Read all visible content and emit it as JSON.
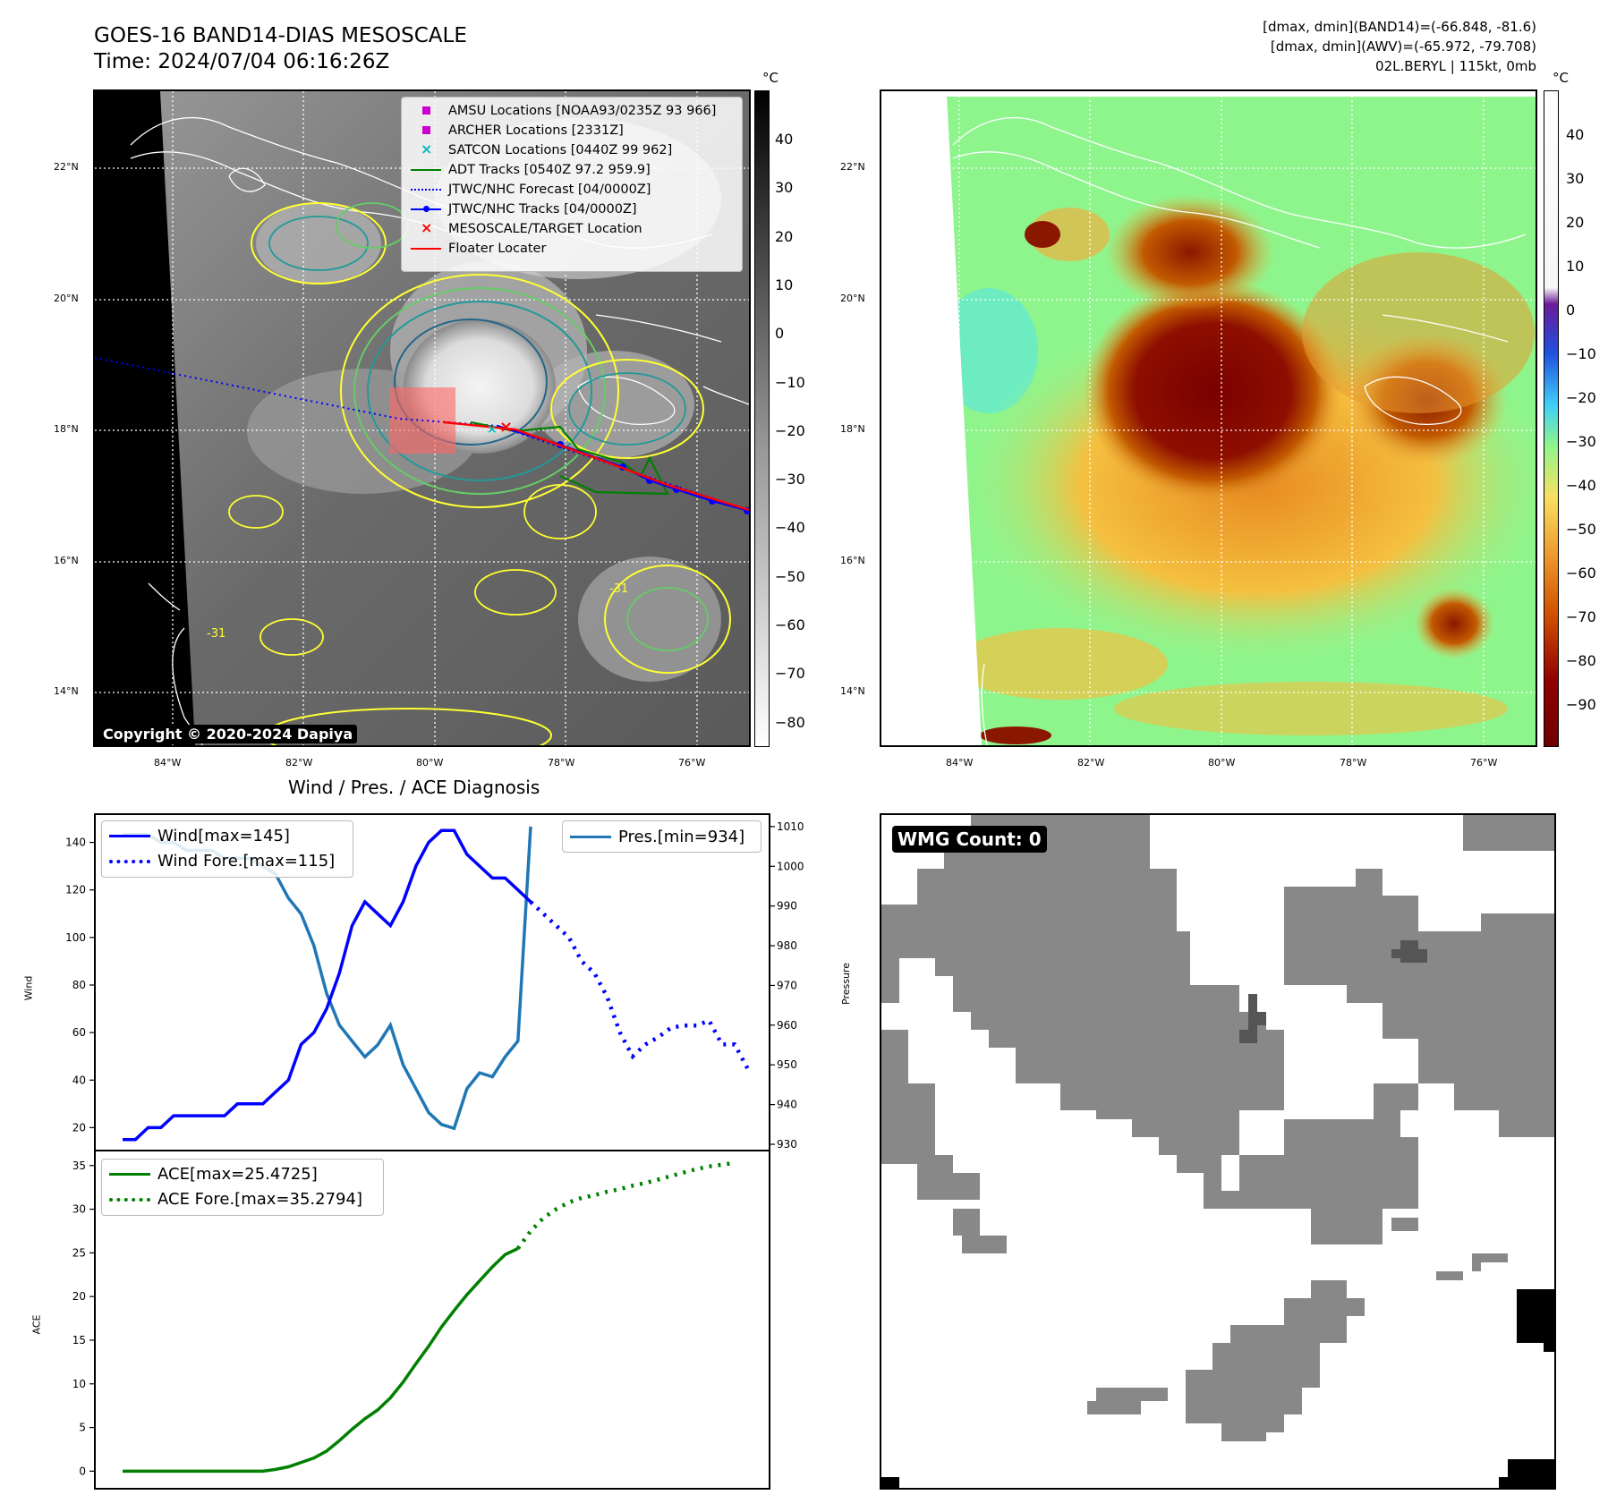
{
  "header": {
    "title_line1": "GOES-16 BAND14-DIAS MESOSCALE",
    "title_line2": "Time: 2024/07/04 06:16:26Z",
    "info_line1": "[dmax, dmin](BAND14)=(-66.848, -81.6)",
    "info_line2": "[dmax, dmin](AWV)=(-65.972, -79.708)",
    "info_line3": "02L.BERYL | 115kt, 0mb"
  },
  "map": {
    "lat_labels": [
      "22°N",
      "20°N",
      "18°N",
      "16°N",
      "14°N"
    ],
    "lon_labels": [
      "84°W",
      "82°W",
      "80°W",
      "78°W",
      "76°W"
    ],
    "contour_label": "-31",
    "copyright": "Copyright © 2020-2024 Dapiya"
  },
  "colorbar_gray": {
    "unit": "°C",
    "ticks": [
      "40",
      "30",
      "20",
      "10",
      "0",
      "−10",
      "−20",
      "−30",
      "−40",
      "−50",
      "−60",
      "−70",
      "−80"
    ]
  },
  "colorbar_awv": {
    "unit": "°C",
    "ticks": [
      "40",
      "30",
      "20",
      "10",
      "0",
      "−10",
      "−20",
      "−30",
      "−40",
      "−50",
      "−60",
      "−70",
      "−80",
      "−90"
    ]
  },
  "legend": {
    "items": [
      {
        "label": "AMSU Locations [NOAA93/0235Z 93 966]",
        "color": "#cc00cc",
        "kind": "square"
      },
      {
        "label": "ARCHER Locations [2331Z]",
        "color": "#cc00cc",
        "kind": "square"
      },
      {
        "label": "SATCON Locations [0440Z 99 962]",
        "color": "#00bbbb",
        "kind": "x"
      },
      {
        "label": "ADT Tracks [0540Z 97.2 959.9]",
        "color": "#008000",
        "kind": "line"
      },
      {
        "label": "JTWC/NHC Forecast [04/0000Z]",
        "color": "#0000ff",
        "kind": "dotted"
      },
      {
        "label": "JTWC/NHC Tracks [04/0000Z]",
        "color": "#0000ff",
        "kind": "linedot"
      },
      {
        "label": "MESOSCALE/TARGET Location",
        "color": "#ff0000",
        "kind": "x"
      },
      {
        "label": "Floater Locater",
        "color": "#ff0000",
        "kind": "line"
      }
    ]
  },
  "wmg": {
    "label": "WMG Count: 0"
  },
  "chart_data": [
    {
      "type": "line",
      "title": "Wind / Pres. / ACE Diagnosis",
      "ylabel": "Wind",
      "ylim": [
        13,
        150
      ],
      "y_ticks": [
        20,
        40,
        60,
        80,
        100,
        120,
        140
      ],
      "series": [
        {
          "name": "Wind[max=145]",
          "style": "solid",
          "color": "#0000ff",
          "values": [
            15,
            15,
            20,
            20,
            25,
            25,
            25,
            25,
            25,
            30,
            30,
            30,
            35,
            40,
            55,
            60,
            70,
            85,
            105,
            115,
            110,
            105,
            115,
            130,
            140,
            145,
            145,
            135,
            130,
            125,
            125,
            120,
            115
          ]
        },
        {
          "name": "Wind Fore.[max=115]",
          "style": "dotted",
          "color": "#0000ff",
          "x_start": 32,
          "values": [
            115,
            110,
            105,
            100,
            90,
            85,
            75,
            60,
            50,
            55,
            58,
            62,
            63,
            63,
            65,
            55,
            55,
            45
          ]
        }
      ]
    },
    {
      "type": "line",
      "ylabel": "Pressure",
      "ylim": [
        930,
        1012
      ],
      "y_ticks": [
        930,
        940,
        950,
        960,
        970,
        980,
        990,
        1000,
        1010
      ],
      "series": [
        {
          "name": "Pres.[min=934]",
          "style": "solid",
          "color": "#1f77b4",
          "values": [
            1008,
            1008,
            1008,
            1006,
            1006,
            1004,
            1004,
            1004,
            1002,
            1002,
            1002,
            1000,
            998,
            992,
            988,
            980,
            968,
            960,
            956,
            952,
            955,
            960,
            950,
            944,
            938,
            935,
            934,
            944,
            948,
            947,
            952,
            956,
            1010
          ]
        }
      ]
    },
    {
      "type": "line",
      "ylabel": "ACE",
      "ylim": [
        -1.5,
        36
      ],
      "y_ticks": [
        0,
        5,
        10,
        15,
        20,
        25,
        30,
        35
      ],
      "series": [
        {
          "name": "ACE[max=25.4725]",
          "style": "solid",
          "color": "#008000",
          "values": [
            0,
            0,
            0,
            0,
            0,
            0,
            0,
            0,
            0,
            0,
            0,
            0,
            0.2,
            0.5,
            1,
            1.5,
            2.3,
            3.5,
            4.8,
            6,
            7,
            8.4,
            10.2,
            12.3,
            14.3,
            16.5,
            18.4,
            20.2,
            21.8,
            23.4,
            24.8,
            25.5
          ]
        },
        {
          "name": "ACE Fore.[max=35.2794]",
          "style": "dotted",
          "color": "#008000",
          "x_start": 31,
          "values": [
            25.5,
            27.5,
            29,
            30,
            30.8,
            31.3,
            31.6,
            32,
            32.3,
            32.7,
            33,
            33.4,
            33.8,
            34.2,
            34.6,
            34.9,
            35.1,
            35.3
          ]
        }
      ]
    }
  ]
}
